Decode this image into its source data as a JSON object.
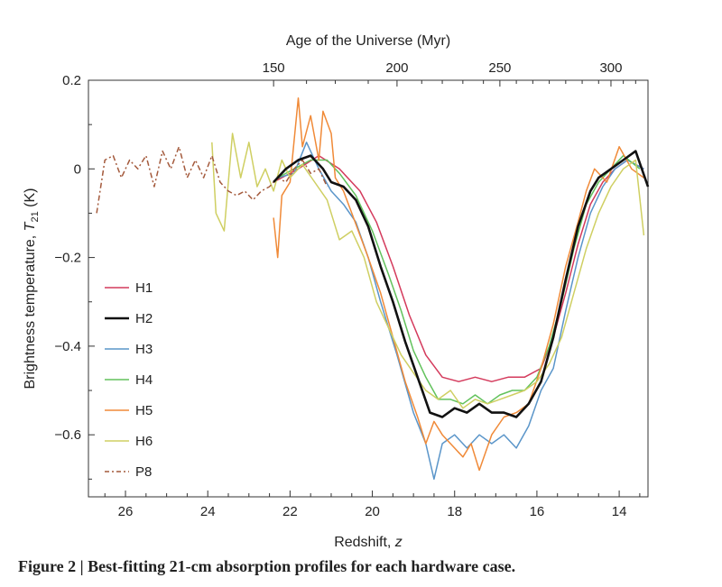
{
  "caption": {
    "label": "Figure 2",
    "separator": "|",
    "text": "Best-fitting 21-cm absorption profiles for each hardware case."
  },
  "chart_data": {
    "type": "line",
    "title": "",
    "xlabel": "Redshift, z",
    "ylabel": "Brightness temperature, T21 (K)",
    "ylabel_parts": {
      "main": "Brightness temperature, ",
      "symbol": "T",
      "subscript": "21",
      "unit": " (K)"
    },
    "xlabel_parts": {
      "main": "Redshift, ",
      "symbol": "z"
    },
    "x_reversed": true,
    "xlim": [
      26.9,
      13.3
    ],
    "ylim": [
      -0.74,
      0.2
    ],
    "xticks": [
      26,
      24,
      22,
      20,
      18,
      16,
      14
    ],
    "yticks": [
      0.2,
      0,
      -0.2,
      -0.4,
      -0.6
    ],
    "ytick_labels": [
      "0.2",
      "0",
      "−0.2",
      "−0.4",
      "−0.6"
    ],
    "top_axis": {
      "label": "Age of the Universe (Myr)",
      "ticks": [
        {
          "label": "150",
          "z": 22.4
        },
        {
          "label": "200",
          "z": 19.4
        },
        {
          "label": "250",
          "z": 16.9
        },
        {
          "label": "300",
          "z": 14.2
        }
      ]
    },
    "grid": false,
    "legend": {
      "position": "left"
    },
    "series": [
      {
        "name": "H1",
        "color": "#d43a5c",
        "style": "solid",
        "x": [
          22.4,
          21.8,
          21.3,
          20.8,
          20.3,
          19.9,
          19.5,
          19.1,
          18.7,
          18.3,
          17.9,
          17.5,
          17.1,
          16.7,
          16.3,
          15.9,
          15.6,
          15.3,
          15.0,
          14.7,
          14.4,
          14.1,
          13.8,
          13.4
        ],
        "y": [
          -0.03,
          0.0,
          0.03,
          0.0,
          -0.05,
          -0.12,
          -0.22,
          -0.33,
          -0.42,
          -0.47,
          -0.48,
          -0.47,
          -0.48,
          -0.47,
          -0.47,
          -0.45,
          -0.38,
          -0.28,
          -0.17,
          -0.08,
          -0.03,
          0.0,
          0.02,
          0.0
        ]
      },
      {
        "name": "H2",
        "color": "#111111",
        "style": "thick",
        "x": [
          22.4,
          22.1,
          21.8,
          21.5,
          21.2,
          21.0,
          20.7,
          20.4,
          20.1,
          19.8,
          19.5,
          19.2,
          18.9,
          18.6,
          18.3,
          18.0,
          17.7,
          17.4,
          17.1,
          16.8,
          16.5,
          16.2,
          15.9,
          15.6,
          15.3,
          15.0,
          14.7,
          14.5,
          14.2,
          13.9,
          13.6,
          13.3
        ],
        "y": [
          -0.03,
          0.0,
          0.02,
          0.03,
          0.0,
          -0.03,
          -0.04,
          -0.07,
          -0.13,
          -0.22,
          -0.3,
          -0.39,
          -0.47,
          -0.55,
          -0.56,
          -0.54,
          -0.55,
          -0.53,
          -0.55,
          -0.55,
          -0.56,
          -0.53,
          -0.48,
          -0.38,
          -0.25,
          -0.13,
          -0.05,
          -0.02,
          0.0,
          0.02,
          0.04,
          -0.04
        ]
      },
      {
        "name": "H3",
        "color": "#5a95c9",
        "style": "solid",
        "x": [
          22.3,
          21.9,
          21.6,
          21.3,
          21.0,
          20.7,
          20.4,
          20.1,
          19.8,
          19.4,
          19.0,
          18.7,
          18.5,
          18.3,
          18.0,
          17.7,
          17.4,
          17.1,
          16.8,
          16.5,
          16.2,
          15.9,
          15.6,
          15.3,
          15.0,
          14.7,
          14.4,
          14.1,
          13.8,
          13.4
        ],
        "y": [
          -0.02,
          -0.01,
          0.06,
          0.0,
          -0.05,
          -0.08,
          -0.12,
          -0.2,
          -0.3,
          -0.42,
          -0.55,
          -0.62,
          -0.7,
          -0.62,
          -0.6,
          -0.63,
          -0.6,
          -0.62,
          -0.6,
          -0.63,
          -0.58,
          -0.5,
          -0.45,
          -0.32,
          -0.2,
          -0.1,
          -0.04,
          0.0,
          0.02,
          0.0
        ]
      },
      {
        "name": "H4",
        "color": "#62c25c",
        "style": "solid",
        "x": [
          22.3,
          21.9,
          21.5,
          21.1,
          20.8,
          20.4,
          20.0,
          19.6,
          19.3,
          19.0,
          18.7,
          18.4,
          18.1,
          17.8,
          17.5,
          17.2,
          16.9,
          16.6,
          16.3,
          16.0,
          15.7,
          15.4,
          15.1,
          14.8,
          14.5,
          14.2,
          13.9,
          13.5
        ],
        "y": [
          -0.02,
          0.0,
          0.02,
          0.02,
          -0.01,
          -0.06,
          -0.14,
          -0.24,
          -0.32,
          -0.41,
          -0.47,
          -0.52,
          -0.52,
          -0.53,
          -0.51,
          -0.53,
          -0.51,
          -0.5,
          -0.5,
          -0.47,
          -0.4,
          -0.3,
          -0.18,
          -0.08,
          -0.03,
          0.0,
          0.03,
          0.0
        ]
      },
      {
        "name": "H5",
        "color": "#f08a38",
        "style": "solid",
        "x": [
          22.4,
          22.3,
          22.2,
          22.0,
          21.8,
          21.7,
          21.5,
          21.3,
          21.2,
          21.0,
          20.9,
          20.7,
          20.5,
          20.3,
          20.1,
          19.8,
          19.5,
          19.2,
          18.9,
          18.7,
          18.5,
          18.3,
          18.0,
          17.8,
          17.6,
          17.4,
          17.1,
          16.8,
          16.5,
          16.2,
          15.9,
          15.6,
          15.3,
          15.0,
          14.8,
          14.6,
          14.3,
          14.0,
          13.7,
          13.4
        ],
        "y": [
          -0.11,
          -0.2,
          -0.06,
          -0.03,
          0.16,
          0.05,
          0.12,
          0.02,
          0.13,
          0.08,
          -0.02,
          -0.05,
          -0.1,
          -0.15,
          -0.2,
          -0.28,
          -0.38,
          -0.48,
          -0.56,
          -0.62,
          -0.57,
          -0.6,
          -0.63,
          -0.65,
          -0.62,
          -0.68,
          -0.6,
          -0.56,
          -0.55,
          -0.53,
          -0.45,
          -0.35,
          -0.22,
          -0.12,
          -0.05,
          0.0,
          -0.03,
          0.05,
          0.0,
          -0.02
        ]
      },
      {
        "name": "H6",
        "color": "#cfcf62",
        "style": "solid",
        "x": [
          23.9,
          23.8,
          23.6,
          23.4,
          23.2,
          23.0,
          22.8,
          22.6,
          22.4,
          22.2,
          22.0,
          21.7,
          21.4,
          21.1,
          20.8,
          20.5,
          20.2,
          19.9,
          19.6,
          19.3,
          19.0,
          18.7,
          18.4,
          18.1,
          17.8,
          17.5,
          17.2,
          16.9,
          16.6,
          16.3,
          16.0,
          15.7,
          15.4,
          15.1,
          14.8,
          14.5,
          14.2,
          13.9,
          13.6,
          13.4
        ],
        "y": [
          0.06,
          -0.1,
          -0.14,
          0.08,
          -0.02,
          0.06,
          -0.04,
          0.0,
          -0.05,
          0.02,
          -0.02,
          0.01,
          -0.03,
          -0.07,
          -0.16,
          -0.14,
          -0.2,
          -0.3,
          -0.36,
          -0.42,
          -0.46,
          -0.5,
          -0.52,
          -0.5,
          -0.54,
          -0.52,
          -0.53,
          -0.52,
          -0.51,
          -0.5,
          -0.48,
          -0.44,
          -0.38,
          -0.28,
          -0.18,
          -0.1,
          -0.04,
          0.0,
          0.02,
          -0.15
        ]
      },
      {
        "name": "P8",
        "color": "#a45a3c",
        "style": "dashdot",
        "x": [
          26.7,
          26.5,
          26.3,
          26.1,
          25.9,
          25.7,
          25.5,
          25.3,
          25.1,
          24.9,
          24.7,
          24.5,
          24.3,
          24.1,
          23.9,
          23.7,
          23.5,
          23.3,
          23.1,
          22.9,
          22.7,
          22.5,
          22.3,
          22.1,
          21.9,
          21.7,
          21.5,
          21.3,
          21.1
        ],
        "y": [
          -0.1,
          0.02,
          0.03,
          -0.02,
          0.02,
          0.0,
          0.03,
          -0.04,
          0.04,
          0.0,
          0.05,
          -0.02,
          0.02,
          -0.02,
          0.03,
          -0.03,
          -0.05,
          -0.06,
          -0.05,
          -0.07,
          -0.05,
          -0.04,
          -0.02,
          -0.03,
          0.0,
          0.02,
          -0.01,
          0.0,
          -0.04
        ]
      }
    ]
  }
}
